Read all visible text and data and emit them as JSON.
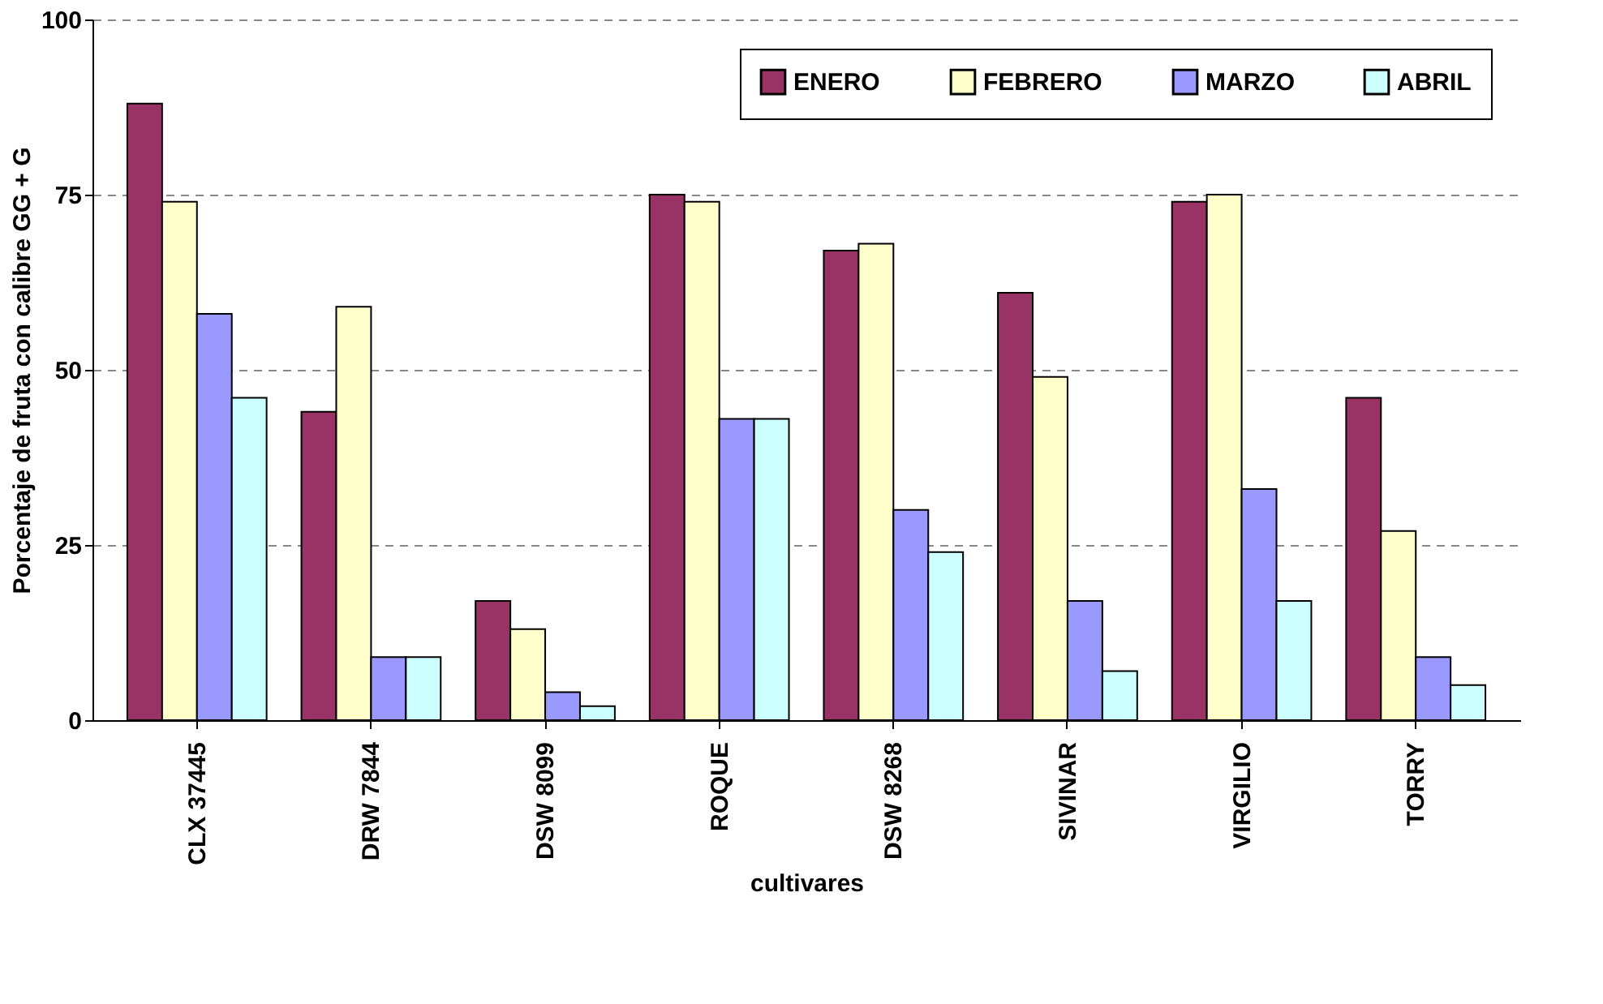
{
  "chart_data": {
    "type": "bar",
    "xlabel": "cultivares",
    "ylabel": "Porcentaje de fruta con calibre GG + G",
    "categories": [
      "CLX 37445",
      "DRW 7844",
      "DSW 8099",
      "ROQUE",
      "DSW 8268",
      "SIVINAR",
      "VIRGILIO",
      "TORRY"
    ],
    "series": [
      {
        "name": "ENERO",
        "color": "#993366",
        "values": [
          88,
          44,
          17,
          75,
          67,
          61,
          74,
          46
        ]
      },
      {
        "name": "FEBRERO",
        "color": "#ffffcc",
        "values": [
          74,
          59,
          13,
          74,
          68,
          49,
          75,
          27
        ]
      },
      {
        "name": "MARZO",
        "color": "#9999ff",
        "values": [
          58,
          9,
          4,
          43,
          30,
          17,
          33,
          9
        ]
      },
      {
        "name": "ABRIL",
        "color": "#ccffff",
        "values": [
          46,
          9,
          2,
          43,
          24,
          7,
          17,
          5
        ]
      }
    ],
    "ylim": [
      0,
      100
    ],
    "yticks": [
      0,
      25,
      50,
      75,
      100
    ],
    "grid": "y",
    "legend": "top right"
  }
}
